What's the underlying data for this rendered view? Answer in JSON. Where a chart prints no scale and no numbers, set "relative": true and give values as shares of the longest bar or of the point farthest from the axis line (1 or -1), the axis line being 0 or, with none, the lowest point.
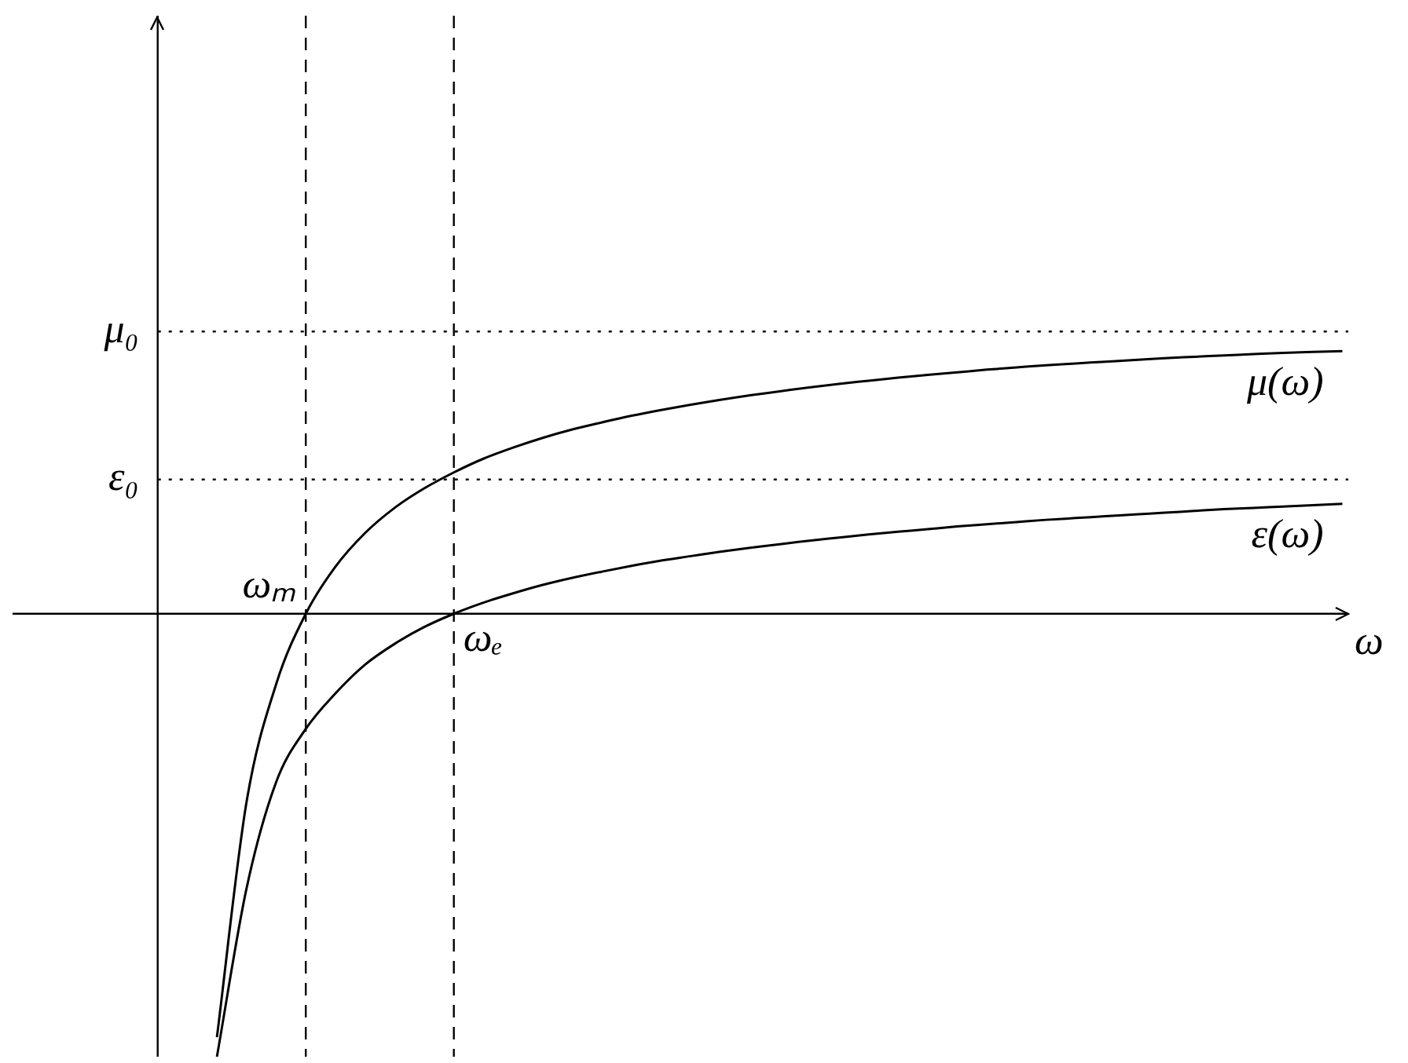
{
  "chart_data": {
    "type": "line",
    "relative": true,
    "xlabel": "ω",
    "legend": false,
    "annotations": [
      "ωₘ",
      "ωₑ"
    ],
    "marker": "none",
    "line_style": "solid",
    "categories": [
      null,
      null,
      null,
      null,
      null,
      null,
      null,
      null,
      null,
      null,
      null,
      null,
      null,
      null,
      null,
      null,
      null,
      null,
      null,
      null,
      null,
      null,
      null,
      null,
      null,
      null,
      null,
      null,
      null,
      null,
      null,
      null,
      null,
      null,
      null,
      null,
      null,
      null,
      null,
      null,
      null
    ],
    "series": [
      {
        "name": "μ(ω)",
        "color": "#000000",
        "values": [
          null,
          null,
          -0.956,
          -0.425,
          -0.159,
          0,
          0.106,
          0.182,
          0.239,
          0.283,
          0.319,
          0.35,
          0.375,
          0.397,
          0.416,
          0.432,
          0.447,
          0.46,
          0.472,
          0.483,
          0.493,
          0.502,
          0.511,
          0.519,
          0.526,
          0.533,
          0.539,
          0.545,
          0.551,
          0.556,
          0.561,
          0.565,
          0.569,
          0.573,
          0.577,
          0.58,
          0.583,
          0.586,
          0.589,
          0.591,
          0.593
        ]
      },
      {
        "name": "ε(ω)",
        "color": "#000000",
        "values": [
          null,
          null,
          -1,
          -0.62,
          -0.38,
          -0.26,
          -0.18,
          -0.115,
          -0.068,
          -0.03,
          0,
          0.025,
          0.046,
          0.065,
          0.081,
          0.095,
          0.108,
          0.12,
          0.13,
          0.14,
          0.149,
          0.157,
          0.165,
          0.172,
          0.179,
          0.185,
          0.191,
          0.197,
          0.202,
          0.207,
          0.212,
          0.216,
          0.22,
          0.224,
          0.228,
          0.232,
          0.236,
          0.239,
          0.242,
          0.245,
          0.248
        ]
      }
    ],
    "ref_lines": [
      {
        "axis": "y",
        "value": 0.637,
        "label": "μ₀",
        "line_style": "dotted",
        "color": "#000000"
      },
      {
        "axis": "y",
        "value": 0.303,
        "label": "ε₀",
        "line_style": "dotted",
        "color": "#000000"
      }
    ]
  }
}
